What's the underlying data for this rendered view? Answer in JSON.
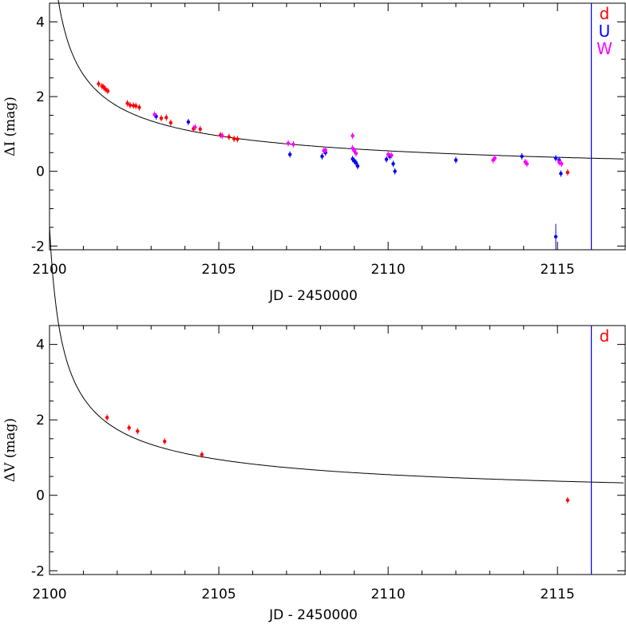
{
  "chart_data": [
    {
      "type": "scatter",
      "title": "",
      "xlabel": "JD - 2450000",
      "ylabel": "ΔI (mag)",
      "xlim": [
        2100,
        2117
      ],
      "ylim": [
        -2.1,
        4.5
      ],
      "xticks": [
        "2100",
        "2105",
        "2110",
        "2115"
      ],
      "yticks": [
        "-2",
        "0",
        "2",
        "4"
      ],
      "legend": {
        "position": "top-right",
        "entries": [
          {
            "label": "d",
            "color": "#ff0000"
          },
          {
            "label": "U",
            "color": "#0000ff"
          },
          {
            "label": "W",
            "color": "#ff00ff"
          }
        ]
      },
      "marker_line_x": 2116.0,
      "fit_curve": true,
      "series": [
        {
          "name": "d",
          "color": "#ff0000",
          "points": [
            [
              2101.45,
              2.34
            ],
            [
              2101.55,
              2.28
            ],
            [
              2101.6,
              2.25
            ],
            [
              2101.65,
              2.2
            ],
            [
              2101.72,
              2.15
            ],
            [
              2102.3,
              1.82
            ],
            [
              2102.38,
              1.77
            ],
            [
              2102.48,
              1.76
            ],
            [
              2102.55,
              1.75
            ],
            [
              2102.65,
              1.71
            ],
            [
              2103.3,
              1.42
            ],
            [
              2103.45,
              1.44
            ],
            [
              2103.58,
              1.3
            ],
            [
              2104.25,
              1.14
            ],
            [
              2104.45,
              1.13
            ],
            [
              2105.05,
              0.97
            ],
            [
              2105.3,
              0.92
            ],
            [
              2105.45,
              0.87
            ],
            [
              2105.55,
              0.86
            ],
            [
              2115.3,
              -0.03
            ]
          ]
        },
        {
          "name": "U",
          "color": "#0000ff",
          "points": [
            [
              2103.15,
              1.47
            ],
            [
              2104.1,
              1.32
            ],
            [
              2107.1,
              0.45
            ],
            [
              2108.05,
              0.4
            ],
            [
              2108.15,
              0.5
            ],
            [
              2108.95,
              0.33
            ],
            [
              2109.0,
              0.28
            ],
            [
              2109.05,
              0.23
            ],
            [
              2109.1,
              0.14
            ],
            [
              2109.95,
              0.32
            ],
            [
              2110.05,
              0.4
            ],
            [
              2110.15,
              0.2
            ],
            [
              2110.2,
              0.0
            ],
            [
              2112.0,
              0.3
            ],
            [
              2113.95,
              0.4
            ],
            [
              2114.95,
              0.35
            ],
            [
              2115.05,
              0.3
            ],
            [
              2115.1,
              -0.06
            ],
            [
              2114.95,
              -1.75
            ]
          ]
        },
        {
          "name": "W",
          "color": "#ff00ff",
          "points": [
            [
              2103.1,
              1.52
            ],
            [
              2104.3,
              1.18
            ],
            [
              2105.1,
              0.95
            ],
            [
              2107.05,
              0.75
            ],
            [
              2107.2,
              0.72
            ],
            [
              2108.1,
              0.55
            ],
            [
              2108.15,
              0.57
            ],
            [
              2108.95,
              0.95
            ],
            [
              2108.95,
              0.62
            ],
            [
              2109.0,
              0.55
            ],
            [
              2109.05,
              0.48
            ],
            [
              2110.0,
              0.45
            ],
            [
              2110.1,
              0.43
            ],
            [
              2113.1,
              0.3
            ],
            [
              2113.15,
              0.35
            ],
            [
              2114.05,
              0.25
            ],
            [
              2114.1,
              0.2
            ],
            [
              2115.05,
              0.24
            ],
            [
              2115.12,
              0.2
            ]
          ]
        }
      ]
    },
    {
      "type": "scatter",
      "title": "",
      "xlabel": "JD - 2450000",
      "ylabel": "ΔV (mag)",
      "xlim": [
        2100,
        2117
      ],
      "ylim": [
        -2.1,
        4.5
      ],
      "xticks": [
        "2100",
        "2105",
        "2110",
        "2115"
      ],
      "yticks": [
        "-2",
        "0",
        "2",
        "4"
      ],
      "legend": {
        "position": "top-right",
        "entries": [
          {
            "label": "d",
            "color": "#ff0000"
          }
        ]
      },
      "marker_line_x": 2116.0,
      "fit_curve": true,
      "series": [
        {
          "name": "d",
          "color": "#ff0000",
          "points": [
            [
              2101.7,
              2.06
            ],
            [
              2102.35,
              1.79
            ],
            [
              2102.6,
              1.7
            ],
            [
              2103.4,
              1.43
            ],
            [
              2104.5,
              1.08
            ],
            [
              2115.3,
              -0.13
            ]
          ]
        }
      ]
    }
  ]
}
